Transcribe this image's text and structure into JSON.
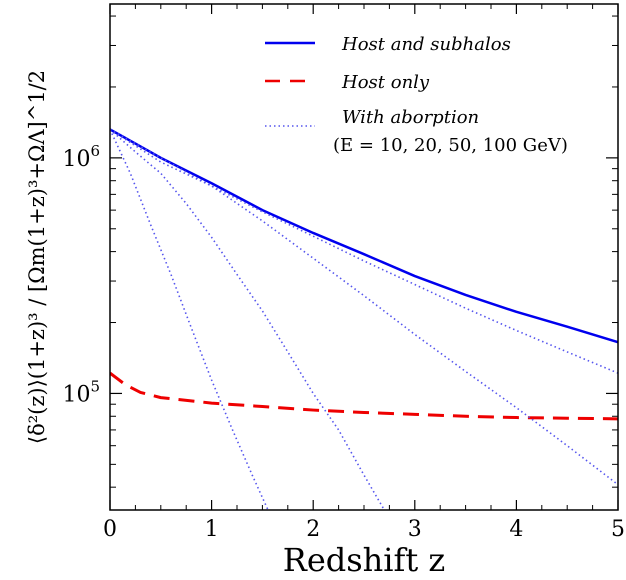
{
  "chart_data": {
    "type": "line",
    "xlabel": "Redshift z",
    "ylabel": "⟨δ²(z)⟩(1+z)³ / [Ωm(1+z)³+ΩΛ]^1/2",
    "xlim": [
      0,
      5
    ],
    "ylim": [
      32000,
      4500000
    ],
    "yscale": "log",
    "x_ticks": [
      {
        "value": 0,
        "label": "0"
      },
      {
        "value": 1,
        "label": "1"
      },
      {
        "value": 2,
        "label": "2"
      },
      {
        "value": 3,
        "label": "3"
      },
      {
        "value": 4,
        "label": "4"
      },
      {
        "value": 5,
        "label": "5"
      }
    ],
    "y_ticks": [
      {
        "value": 100000,
        "label": "10",
        "exp": "5"
      },
      {
        "value": 1000000,
        "label": "10",
        "exp": "6"
      }
    ],
    "legend": {
      "position": "top-right",
      "entries": [
        {
          "label": "Host and subhalos",
          "style": "solid",
          "color": "#0000ee"
        },
        {
          "label": "Host only",
          "style": "dashed",
          "color": "#ee0000"
        },
        {
          "label": "With aborption",
          "sublabel": "(E = 10, 20, 50, 100 GeV)",
          "style": "dotted",
          "color": "#5555ee"
        }
      ]
    },
    "series": [
      {
        "name": "Host and subhalos",
        "style": "solid",
        "color": "#0000ee",
        "x": [
          0,
          0.25,
          0.5,
          1,
          1.5,
          2,
          2.5,
          3,
          3.5,
          4,
          4.5,
          5
        ],
        "y": [
          1320000,
          1150000,
          1000000,
          780000,
          600000,
          480000,
          390000,
          315000,
          262000,
          222000,
          192000,
          165000
        ]
      },
      {
        "name": "Host only",
        "style": "dashed",
        "color": "#ee0000",
        "x": [
          0,
          0.15,
          0.3,
          0.5,
          1,
          1.5,
          2,
          2.5,
          3,
          3.5,
          4,
          4.5,
          5
        ],
        "y": [
          122000,
          109000,
          101000,
          96000,
          91000,
          88000,
          85000,
          83000,
          81500,
          80000,
          79000,
          78500,
          78000
        ]
      },
      {
        "name": "With aborption (100 GeV)",
        "style": "dotted",
        "color": "#5555ee",
        "x": [
          0,
          0.2,
          0.4,
          0.6,
          0.8,
          1.0,
          1.2,
          1.4,
          1.6
        ],
        "y": [
          1320000,
          860000,
          520000,
          320000,
          190000,
          114000,
          71000,
          45000,
          29000
        ]
      },
      {
        "name": "With aborption (50 GeV)",
        "style": "dotted",
        "color": "#5555ee",
        "x": [
          0,
          0.25,
          0.5,
          0.75,
          1.0,
          1.25,
          1.5,
          1.75,
          2.0,
          2.25,
          2.5,
          2.7
        ],
        "y": [
          1320000,
          1060000,
          860000,
          640000,
          460000,
          320000,
          224000,
          150000,
          100000,
          70000,
          45000,
          32000
        ]
      },
      {
        "name": "With aborption (20 GeV)",
        "style": "dotted",
        "color": "#5555ee",
        "x": [
          0,
          0.5,
          1,
          1.5,
          2,
          2.5,
          3,
          3.5,
          4,
          4.5,
          5
        ],
        "y": [
          1320000,
          960000,
          760000,
          540000,
          375000,
          260000,
          178000,
          124000,
          87000,
          60000,
          41000
        ]
      },
      {
        "name": "With aborption (10 GeV)",
        "style": "dotted",
        "color": "#5555ee",
        "x": [
          0,
          0.5,
          1,
          1.5,
          2,
          2.5,
          3,
          3.5,
          4,
          4.5,
          5
        ],
        "y": [
          1320000,
          1000000,
          760000,
          590000,
          465000,
          365000,
          290000,
          230000,
          185000,
          150000,
          122000
        ]
      }
    ]
  }
}
